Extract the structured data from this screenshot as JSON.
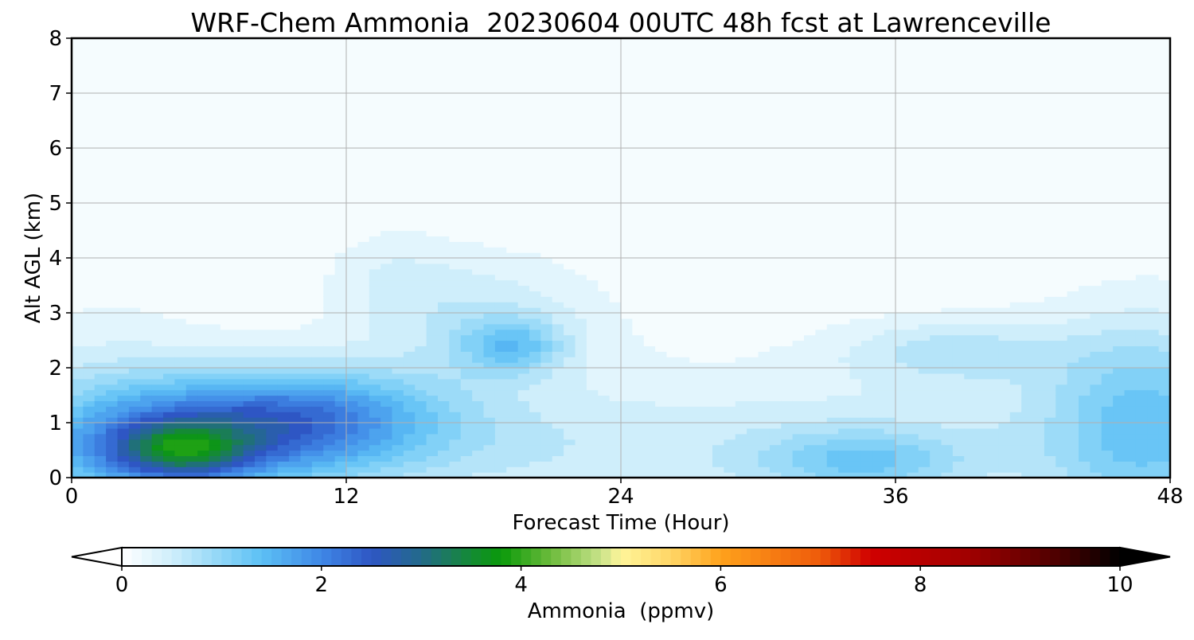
{
  "chart_data": {
    "type": "heatmap",
    "title": "WRF-Chem Ammonia  20230604 00UTC 48h fcst at Lawrenceville",
    "xlabel": "Forecast Time (Hour)",
    "ylabel": "Alt AGL (km)",
    "xlim": [
      0,
      48
    ],
    "ylim": [
      0,
      8
    ],
    "xticks": [
      "0",
      "12",
      "24",
      "36",
      "48"
    ],
    "yticks": [
      "0",
      "1",
      "2",
      "3",
      "4",
      "5",
      "6",
      "7",
      "8"
    ],
    "grid": true,
    "colorbar": {
      "label": "Ammonia  (ppmv)",
      "range": [
        0,
        10
      ],
      "ticks": [
        "0",
        "2",
        "4",
        "6",
        "8",
        "10"
      ],
      "extend": "both",
      "orientation": "horizontal",
      "stops": [
        {
          "value": 0.0,
          "color": "#ffffff"
        },
        {
          "value": 0.5,
          "color": "#cfeefb"
        },
        {
          "value": 1.0,
          "color": "#8fd6f7"
        },
        {
          "value": 1.4,
          "color": "#5cc0f5"
        },
        {
          "value": 2.0,
          "color": "#3f87e6"
        },
        {
          "value": 2.5,
          "color": "#2e56c4"
        },
        {
          "value": 3.0,
          "color": "#236a8a"
        },
        {
          "value": 3.5,
          "color": "#148a34"
        },
        {
          "value": 3.8,
          "color": "#0a9a0a"
        },
        {
          "value": 4.3,
          "color": "#6dbb3c"
        },
        {
          "value": 4.8,
          "color": "#c9e38a"
        },
        {
          "value": 5.0,
          "color": "#fff59a"
        },
        {
          "value": 5.5,
          "color": "#ffd666"
        },
        {
          "value": 6.0,
          "color": "#ffa21c"
        },
        {
          "value": 7.0,
          "color": "#ee5a0a"
        },
        {
          "value": 7.5,
          "color": "#d00000"
        },
        {
          "value": 8.5,
          "color": "#a00000"
        },
        {
          "value": 9.4,
          "color": "#4a0000"
        },
        {
          "value": 10.0,
          "color": "#000000"
        }
      ]
    },
    "background_value": 0.05,
    "features": [
      {
        "x": 4.8,
        "z": 0.5,
        "sx": 2.0,
        "sz": 0.35,
        "amp": 1.7
      },
      {
        "x": 4.0,
        "z": 0.7,
        "sx": 4.5,
        "sz": 0.8,
        "amp": 1.0
      },
      {
        "x": 9.0,
        "z": 1.0,
        "sx": 4.0,
        "sz": 0.6,
        "amp": 1.1
      },
      {
        "x": 12.0,
        "z": 1.3,
        "sx": 4.0,
        "sz": 0.6,
        "amp": 0.6
      },
      {
        "x": 1.5,
        "z": 1.0,
        "sx": 3.5,
        "sz": 1.4,
        "amp": 0.4
      },
      {
        "x": 18.0,
        "z": 2.9,
        "sx": 3.5,
        "sz": 0.8,
        "amp": 0.5
      },
      {
        "x": 19.2,
        "z": 2.4,
        "sx": 1.6,
        "sz": 0.35,
        "amp": 0.9
      },
      {
        "x": 14.0,
        "z": 3.7,
        "sx": 2.0,
        "sz": 0.6,
        "amp": 0.25
      },
      {
        "x": 10.0,
        "z": 0.5,
        "sx": 10.0,
        "sz": 0.7,
        "amp": 0.5
      },
      {
        "x": 34.5,
        "z": 0.3,
        "sx": 3.0,
        "sz": 0.4,
        "amp": 0.8
      },
      {
        "x": 33.0,
        "z": 0.5,
        "sx": 7.0,
        "sz": 0.9,
        "amp": 0.3
      },
      {
        "x": 38.5,
        "z": 2.3,
        "sx": 3.5,
        "sz": 0.4,
        "amp": 0.55
      },
      {
        "x": 47.0,
        "z": 1.0,
        "sx": 3.0,
        "sz": 1.3,
        "amp": 1.0
      },
      {
        "x": 20.0,
        "z": 0.8,
        "sx": 10.0,
        "sz": 1.2,
        "amp": 0.2
      },
      {
        "x": 45.0,
        "z": 0.8,
        "sx": 7.0,
        "sz": 1.3,
        "amp": 0.3
      },
      {
        "x": 41.0,
        "z": 4.8,
        "sx": 1.4,
        "sz": 0.8,
        "amp": 0.13
      },
      {
        "x": 38.5,
        "z": 6.7,
        "sx": 1.3,
        "sz": 1.3,
        "amp": 0.1
      }
    ]
  }
}
